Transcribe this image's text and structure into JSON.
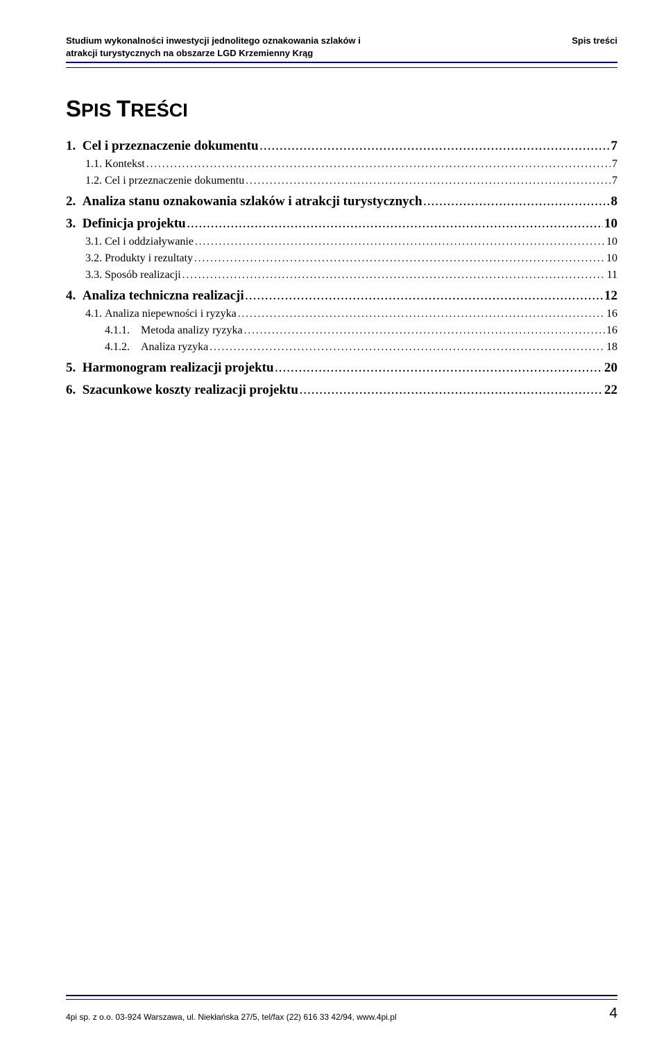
{
  "header": {
    "left_line1": "Studium wykonalności inwestycji jednolitego oznakowania szlaków i",
    "left_line2": "atrakcji turystycznych na obszarze LGD Krzemienny Krąg",
    "right": "Spis treści"
  },
  "title_part1": "S",
  "title_part2": "PIS ",
  "title_part3": "T",
  "title_part4": "REŚCI",
  "toc": [
    {
      "level": 1,
      "num": "1.",
      "text": "Cel i przeznaczenie dokumentu",
      "page": "7"
    },
    {
      "level": 2,
      "num": "1.1.",
      "text": "Kontekst",
      "page": "7"
    },
    {
      "level": 2,
      "num": "1.2.",
      "text": "Cel i przeznaczenie dokumentu",
      "page": "7"
    },
    {
      "level": 1,
      "num": "2.",
      "text": "Analiza stanu oznakowania szlaków i atrakcji turystycznych",
      "page": "8"
    },
    {
      "level": 1,
      "num": "3.",
      "text": "Definicja projektu",
      "page": "10"
    },
    {
      "level": 2,
      "num": "3.1.",
      "text": "Cel i oddziaływanie",
      "page": "10"
    },
    {
      "level": 2,
      "num": "3.2.",
      "text": "Produkty i rezultaty",
      "page": "10"
    },
    {
      "level": 2,
      "num": "3.3.",
      "text": "Sposób realizacji",
      "page": "11"
    },
    {
      "level": 1,
      "num": "4.",
      "text": "Analiza techniczna realizacji",
      "page": "12"
    },
    {
      "level": 2,
      "num": "4.1.",
      "text": "Analiza niepewności i ryzyka",
      "page": "16"
    },
    {
      "level": 3,
      "num": "4.1.1.",
      "text": "Metoda analizy ryzyka",
      "page": "16"
    },
    {
      "level": 3,
      "num": "4.1.2.",
      "text": "Analiza ryzyka",
      "page": "18"
    },
    {
      "level": 1,
      "num": "5.",
      "text": "Harmonogram realizacji projektu",
      "page": "20"
    },
    {
      "level": 1,
      "num": "6.",
      "text": "Szacunkowe koszty realizacji projektu",
      "page": "22"
    }
  ],
  "footer": {
    "text": "4pi sp. z o.o. 03-924 Warszawa, ul. Niekłańska 27/5, tel/fax (22) 616 33 42/94, www.4pi.pl",
    "page_number": "4"
  },
  "colors": {
    "rule": "#000080",
    "text": "#000000",
    "background": "#ffffff"
  }
}
